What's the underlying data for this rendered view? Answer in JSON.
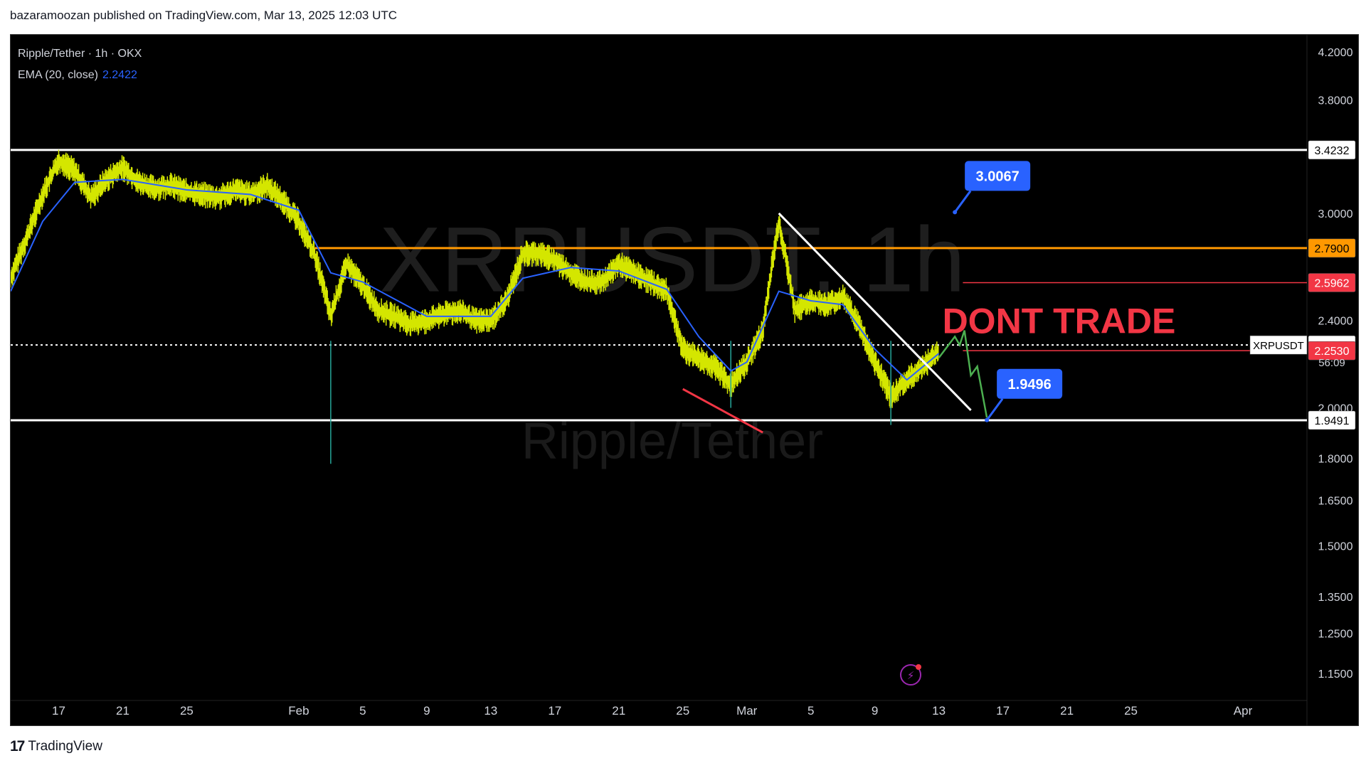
{
  "header": {
    "published_text": "bazaramoozan published on TradingView.com, Mar 13, 2025 12:03 UTC"
  },
  "footer": {
    "brand": "TradingView"
  },
  "legend": {
    "symbol_line": "Ripple/Tether · 1h · OKX",
    "ema_label": "EMA (20, close)",
    "ema_value": "2.2422"
  },
  "watermark": {
    "symbol": "XRPUSDT, 1h",
    "name": "Ripple/Tether"
  },
  "colors": {
    "background": "#000000",
    "candles": "#d4e600",
    "ema": "#2962ff",
    "orange_level": "#ff9800",
    "red_level": "#f23645",
    "callout": "#2962ff",
    "projection": "#4caf50",
    "white_lines": "#ffffff"
  },
  "chart_data": {
    "type": "line",
    "title": "Ripple/Tether · 1h · OKX",
    "y_scale": "log",
    "ylim": [
      1.1,
      4.3
    ],
    "y_ticks": [
      "4.2000",
      "3.8000",
      "3.0000",
      "2.4000",
      "2.0000",
      "1.8000",
      "1.6500",
      "1.5000",
      "1.3500",
      "1.2500",
      "1.1500"
    ],
    "x_range": [
      "2025-01-14",
      "2025-04-05"
    ],
    "x_ticks": [
      {
        "date": "2025-01-17",
        "label": "17"
      },
      {
        "date": "2025-01-21",
        "label": "21"
      },
      {
        "date": "2025-01-25",
        "label": "25"
      },
      {
        "date": "2025-02-01",
        "label": "Feb"
      },
      {
        "date": "2025-02-05",
        "label": "5"
      },
      {
        "date": "2025-02-09",
        "label": "9"
      },
      {
        "date": "2025-02-13",
        "label": "13"
      },
      {
        "date": "2025-02-17",
        "label": "17"
      },
      {
        "date": "2025-02-21",
        "label": "21"
      },
      {
        "date": "2025-02-25",
        "label": "25"
      },
      {
        "date": "2025-03-01",
        "label": "Mar"
      },
      {
        "date": "2025-03-05",
        "label": "5"
      },
      {
        "date": "2025-03-09",
        "label": "9"
      },
      {
        "date": "2025-03-13",
        "label": "13"
      },
      {
        "date": "2025-03-17",
        "label": "17"
      },
      {
        "date": "2025-03-21",
        "label": "21"
      },
      {
        "date": "2025-03-25",
        "label": "25"
      },
      {
        "date": "2025-04-01",
        "label": "Apr"
      }
    ],
    "series": [
      {
        "name": "XRPUSDT",
        "points": [
          [
            "2025-01-14",
            2.62
          ],
          [
            "2025-01-15",
            2.85
          ],
          [
            "2025-01-16",
            3.12
          ],
          [
            "2025-01-17",
            3.35
          ],
          [
            "2025-01-18",
            3.28
          ],
          [
            "2025-01-19",
            3.1
          ],
          [
            "2025-01-20",
            3.22
          ],
          [
            "2025-01-21",
            3.3
          ],
          [
            "2025-01-22",
            3.2
          ],
          [
            "2025-01-23",
            3.16
          ],
          [
            "2025-01-24",
            3.18
          ],
          [
            "2025-01-25",
            3.14
          ],
          [
            "2025-01-26",
            3.12
          ],
          [
            "2025-01-27",
            3.1
          ],
          [
            "2025-01-28",
            3.15
          ],
          [
            "2025-01-29",
            3.12
          ],
          [
            "2025-01-30",
            3.18
          ],
          [
            "2025-01-31",
            3.08
          ],
          [
            "2025-02-01",
            2.95
          ],
          [
            "2025-02-02",
            2.75
          ],
          [
            "2025-02-03",
            2.42
          ],
          [
            "2025-02-04",
            2.7
          ],
          [
            "2025-02-05",
            2.58
          ],
          [
            "2025-02-06",
            2.45
          ],
          [
            "2025-02-07",
            2.42
          ],
          [
            "2025-02-08",
            2.38
          ],
          [
            "2025-02-09",
            2.4
          ],
          [
            "2025-02-10",
            2.43
          ],
          [
            "2025-02-11",
            2.45
          ],
          [
            "2025-02-12",
            2.4
          ],
          [
            "2025-02-13",
            2.4
          ],
          [
            "2025-02-14",
            2.5
          ],
          [
            "2025-02-15",
            2.76
          ],
          [
            "2025-02-16",
            2.76
          ],
          [
            "2025-02-17",
            2.72
          ],
          [
            "2025-02-18",
            2.65
          ],
          [
            "2025-02-19",
            2.6
          ],
          [
            "2025-02-20",
            2.6
          ],
          [
            "2025-02-21",
            2.7
          ],
          [
            "2025-02-22",
            2.65
          ],
          [
            "2025-02-23",
            2.6
          ],
          [
            "2025-02-24",
            2.55
          ],
          [
            "2025-02-25",
            2.26
          ],
          [
            "2025-02-26",
            2.22
          ],
          [
            "2025-02-27",
            2.18
          ],
          [
            "2025-02-28",
            2.1
          ],
          [
            "2025-03-01",
            2.2
          ],
          [
            "2025-03-02",
            2.35
          ],
          [
            "2025-03-03",
            2.95
          ],
          [
            "2025-03-04",
            2.45
          ],
          [
            "2025-03-05",
            2.5
          ],
          [
            "2025-03-06",
            2.48
          ],
          [
            "2025-03-07",
            2.52
          ],
          [
            "2025-03-08",
            2.38
          ],
          [
            "2025-03-09",
            2.2
          ],
          [
            "2025-03-10",
            2.05
          ],
          [
            "2025-03-11",
            2.12
          ],
          [
            "2025-03-12",
            2.18
          ],
          [
            "2025-03-13",
            2.25
          ]
        ]
      },
      {
        "name": "EMA (20, close)",
        "points": [
          [
            "2025-01-14",
            2.55
          ],
          [
            "2025-01-16",
            2.95
          ],
          [
            "2025-01-18",
            3.2
          ],
          [
            "2025-01-21",
            3.22
          ],
          [
            "2025-01-25",
            3.15
          ],
          [
            "2025-01-29",
            3.12
          ],
          [
            "2025-02-01",
            3.02
          ],
          [
            "2025-02-03",
            2.65
          ],
          [
            "2025-02-05",
            2.6
          ],
          [
            "2025-02-09",
            2.42
          ],
          [
            "2025-02-13",
            2.42
          ],
          [
            "2025-02-15",
            2.62
          ],
          [
            "2025-02-18",
            2.68
          ],
          [
            "2025-02-21",
            2.66
          ],
          [
            "2025-02-24",
            2.56
          ],
          [
            "2025-02-26",
            2.32
          ],
          [
            "2025-02-28",
            2.16
          ],
          [
            "2025-03-01",
            2.2
          ],
          [
            "2025-03-03",
            2.55
          ],
          [
            "2025-03-05",
            2.5
          ],
          [
            "2025-03-07",
            2.48
          ],
          [
            "2025-03-09",
            2.26
          ],
          [
            "2025-03-11",
            2.12
          ],
          [
            "2025-03-13",
            2.24
          ]
        ]
      }
    ],
    "levels": [
      {
        "label": "3.4232",
        "value": 3.4232,
        "color": "#ffffff",
        "style": "solid"
      },
      {
        "label": "2.7900",
        "value": 2.79,
        "color": "#ff9800",
        "style": "solid"
      },
      {
        "label": "2.5962",
        "value": 2.5962,
        "color": "#f23645",
        "style": "thin"
      },
      {
        "label": "2.2800",
        "value": 2.28,
        "color": "#ffffff",
        "style": "dotted"
      },
      {
        "label": "2.2530",
        "value": 2.253,
        "color": "#f23645",
        "style": "thin"
      },
      {
        "label": "1.9491",
        "value": 1.9491,
        "color": "#ffffff",
        "style": "solid"
      }
    ],
    "price_tag": {
      "symbol": "XRPUSDT",
      "price": "2.2800",
      "countdown": "56:09"
    },
    "trendlines": [
      {
        "from": [
          "2025-03-03",
          3.0
        ],
        "to": [
          "2025-03-15",
          1.99
        ],
        "color": "#ffffff"
      },
      {
        "from": [
          "2025-02-25",
          2.08
        ],
        "to": [
          "2025-03-02",
          1.9
        ],
        "color": "#f23645"
      }
    ],
    "projection": [
      [
        "2025-03-13",
        2.22
      ],
      [
        "2025-03-14",
        2.32
      ],
      [
        "2025-03-14.3",
        2.28
      ],
      [
        "2025-03-14.6",
        2.35
      ],
      [
        "2025-03-15",
        2.14
      ],
      [
        "2025-03-15.4",
        2.18
      ],
      [
        "2025-03-16",
        1.96
      ]
    ],
    "annotations": [
      {
        "type": "callout",
        "text": "3.0067",
        "at": [
          "2025-03-14",
          3.0067
        ]
      },
      {
        "type": "callout",
        "text": "1.9496",
        "at": [
          "2025-03-16",
          1.9496
        ]
      },
      {
        "type": "text",
        "text": "DONT TRADE",
        "at": [
          "2025-03-21",
          2.4
        ]
      }
    ]
  }
}
